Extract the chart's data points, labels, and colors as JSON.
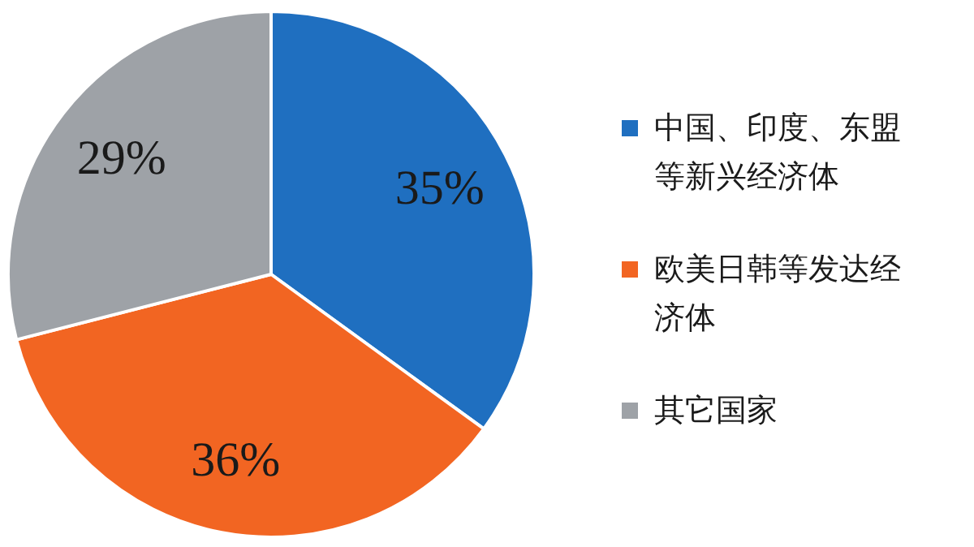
{
  "chart_data": {
    "type": "pie",
    "categories": [
      "中国、印度、东盟等新兴经济体",
      "欧美日韩等发达经济体",
      "其它国家"
    ],
    "values": [
      35,
      36,
      29
    ],
    "colors": [
      "#1f6fc0",
      "#f26522",
      "#9ea2a7"
    ],
    "value_labels": [
      "35%",
      "36%",
      "29%"
    ],
    "legend": "right"
  }
}
